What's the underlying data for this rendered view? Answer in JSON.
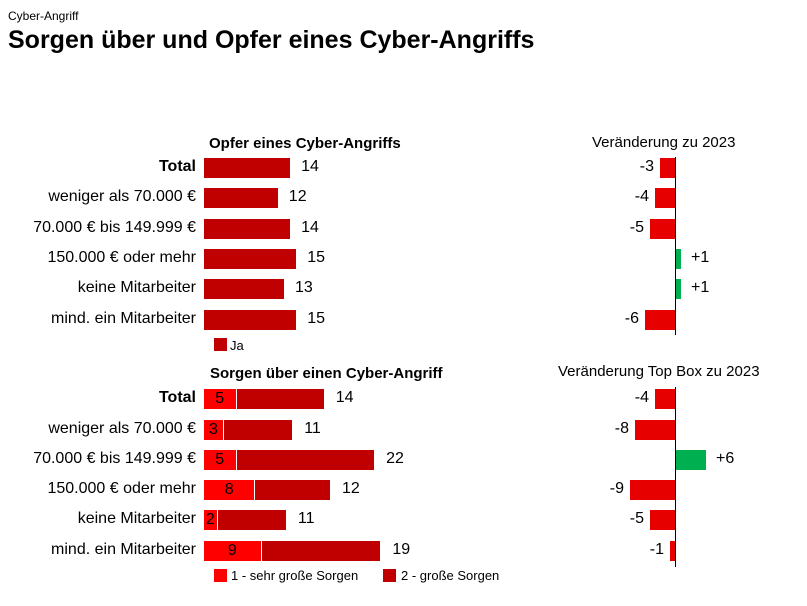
{
  "supertitle": "Cyber-Angriff",
  "title": "Sorgen über und Opfer eines Cyber-Angriffs",
  "colors": {
    "ja": "#C00000",
    "sehr_gross": "#FF0000",
    "gross": "#C00000",
    "negative": "#E60000",
    "positive": "#00B050"
  },
  "chart_data": [
    {
      "type": "bar",
      "title": "Opfer eines Cyber-Angriffs",
      "categories": [
        "Total",
        "weniger als 70.000 €",
        "70.000 € bis 149.999 €",
        "150.000 € oder mehr",
        "keine Mitarbeiter",
        "mind. ein Mitarbeiter"
      ],
      "series": [
        {
          "name": "Ja",
          "values": [
            14,
            12,
            14,
            15,
            13,
            15
          ]
        }
      ]
    },
    {
      "type": "bar",
      "title": "Veränderung zu 2023",
      "categories": [
        "Total",
        "weniger als 70.000 €",
        "70.000 € bis 149.999 €",
        "150.000 € oder mehr",
        "keine Mitarbeiter",
        "mind. ein Mitarbeiter"
      ],
      "values": [
        -3,
        -4,
        -5,
        1,
        1,
        -6
      ],
      "labels": [
        "-3",
        "-4",
        "-5",
        "+1",
        "+1",
        "-6"
      ]
    },
    {
      "type": "bar",
      "stacked": true,
      "title": "Sorgen über einen Cyber-Angriff",
      "categories": [
        "Total",
        "weniger als 70.000 €",
        "70.000 € bis 149.999 €",
        "150.000 € oder mehr",
        "keine Mitarbeiter",
        "mind. ein Mitarbeiter"
      ],
      "series": [
        {
          "name": "1 - sehr große Sorgen",
          "values": [
            5,
            3,
            5,
            8,
            2,
            9
          ]
        },
        {
          "name": "2 - große Sorgen",
          "values": [
            14,
            11,
            22,
            12,
            11,
            19
          ]
        }
      ]
    },
    {
      "type": "bar",
      "title": "Veränderung Top Box zu 2023",
      "categories": [
        "Total",
        "weniger als 70.000 €",
        "70.000 € bis 149.999 €",
        "150.000 € oder mehr",
        "keine Mitarbeiter",
        "mind. ein Mitarbeiter"
      ],
      "values": [
        -4,
        -8,
        6,
        -9,
        -5,
        -1
      ],
      "labels": [
        "-4",
        "-8",
        "+6",
        "-9",
        "-5",
        "-1"
      ]
    }
  ]
}
